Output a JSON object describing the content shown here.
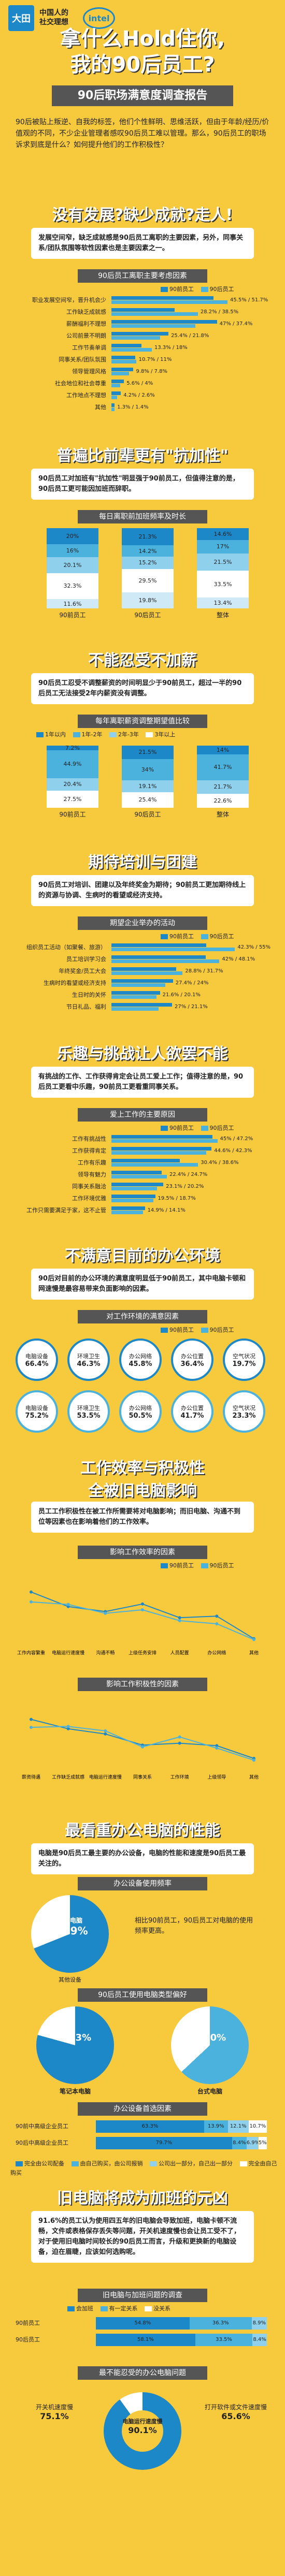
{
  "header": {
    "logo_text": "大田",
    "logo_sub_line1": "中国人的",
    "logo_sub_line2": "社交理想",
    "intel": "intel",
    "title_line1": "拿什么Hold住你,",
    "title_line2": "我的90后员工?",
    "subtitle": "90后职场满意度调查报告"
  },
  "intro": "90后被贴上叛逆、自我的标签，他们个性鲜明、思维活跃，但由于年龄/经历/价值观的不同，不少企业管理者感叹90后员工难以管理。那么，90后员工的职场诉求到底是什么？如何提升他们的工作积极性？",
  "s1": {
    "title": "没有发展?缺少成就?走人!",
    "callout": "发展空间窄，缺乏成就感是90后员工离职的主要因素，另外，同事关系/团队氛围等软性因素也是主要因素之一。",
    "chart_title": "90后员工离职主要考虑因素",
    "legend": [
      "90前员工",
      "90后员工"
    ],
    "rows": [
      {
        "label": "职业发展空间窄，晋升机会少",
        "a": 45.5,
        "b": 51.7
      },
      {
        "label": "工作缺乏成就感",
        "a": 28.2,
        "b": 38.5
      },
      {
        "label": "薪酬福利不理想",
        "a": 47.0,
        "b": 37.4
      },
      {
        "label": "公司前景不明朗",
        "a": 25.4,
        "b": 21.8
      },
      {
        "label": "工作节奏单调",
        "a": 13.3,
        "b": 18.0
      },
      {
        "label": "同事关系/团队氛围",
        "a": 10.7,
        "b": 11.0
      },
      {
        "label": "领导管理风格",
        "a": 9.8,
        "b": 7.8
      },
      {
        "label": "社会地位和社会尊重",
        "a": 5.6,
        "b": 4.0
      },
      {
        "label": "工作地点不理想",
        "a": 4.2,
        "b": 2.6
      },
      {
        "label": "其他",
        "a": 1.3,
        "b": 1.4
      }
    ]
  },
  "s2": {
    "title": "普遍比前辈更有\"抗加性\"",
    "callout": "90后员工对加班有\"抗加性\"明显强于90前员工，但值得注意的是，90后员工更可能因加班而辞职。",
    "chart_title": "每日离职前加班频率及时长",
    "cols": [
      {
        "label": "90前员工",
        "segs": [
          20.0,
          16.0,
          20.1,
          32.3,
          11.6
        ]
      },
      {
        "label": "90后员工",
        "segs": [
          21.3,
          14.2,
          15.2,
          29.5,
          19.8
        ]
      },
      {
        "label": "整体",
        "segs": [
          14.6,
          17.0,
          21.5,
          33.5,
          13.4
        ]
      }
    ]
  },
  "s3": {
    "title": "不能忍受不加薪",
    "callout": "90后员工忍受不调整薪资的时间明显少于90前员工，超过一半的90后员工无法接受2年内薪资没有调整。",
    "chart_title": "每年离职薪资调整期望值比较",
    "legend": [
      "1年以内",
      "1年-2年",
      "2年-3年",
      "3年以上"
    ],
    "cols": [
      {
        "label": "90前员工",
        "segs": [
          7.2,
          44.9,
          20.4,
          27.5
        ]
      },
      {
        "label": "90后员工",
        "segs": [
          21.5,
          34.0,
          19.1,
          25.4
        ]
      },
      {
        "label": "整体",
        "segs": [
          14.0,
          41.7,
          21.7,
          22.6
        ]
      }
    ]
  },
  "s4": {
    "title": "期待培训与团建",
    "callout": "90后员工对培训、团建以及年终奖金为期待；90前员工更加期待线上的资源与协调、生病时的看望或经济支持。",
    "chart_title": "期望企业举办的活动",
    "legend": [
      "90前员工",
      "90后员工"
    ],
    "rows": [
      {
        "label": "组织员工活动（如聚餐、旅游）",
        "a": 42.3,
        "b": 55.0
      },
      {
        "label": "员工培训学习会",
        "a": 42.0,
        "b": 48.1
      },
      {
        "label": "年终奖金/员工大会",
        "a": 28.8,
        "b": 31.7
      },
      {
        "label": "生病时的看望或经济支持",
        "a": 27.4,
        "b": 24.0
      },
      {
        "label": "生日时的关怀",
        "a": 21.6,
        "b": 20.1
      },
      {
        "label": "节日礼品、福利",
        "a": 27.0,
        "b": 21.1
      }
    ]
  },
  "s5": {
    "title": "乐趣与挑战让人欲罢不能",
    "callout": "有挑战的工作、工作获得肯定会让员工爱上工作；值得注意的是，90后员工更看中乐趣，90前员工更看重同事关系。",
    "chart_title": "爱上工作的主要原因",
    "legend": [
      "90前员工",
      "90后员工"
    ],
    "rows": [
      {
        "label": "工作有挑战性",
        "a": 45.0,
        "b": 47.2
      },
      {
        "label": "工作获得肯定",
        "a": 44.6,
        "b": 42.3
      },
      {
        "label": "工作有乐趣",
        "a": 30.4,
        "b": 38.6
      },
      {
        "label": "领导有魅力",
        "a": 22.4,
        "b": 24.7
      },
      {
        "label": "同事关系融洽",
        "a": 23.1,
        "b": 20.2
      },
      {
        "label": "工作环境优雅",
        "a": 19.5,
        "b": 18.7
      },
      {
        "label": "工作只需要满足于家，这不止管",
        "a": 14.9,
        "b": 14.1
      }
    ]
  },
  "s6": {
    "title": "不满意目前的办公环境",
    "callout": "90后对目前的办公环境的满意度明显低于90前员工，其中电脑卡顿和网速慢是最容易带来负面影响的因素。",
    "chart_title": "对工作环境的满意因素",
    "legend": [
      "90前员工",
      "90后员工"
    ],
    "row1": [
      {
        "label": "电脑设备",
        "val": "66.4%"
      },
      {
        "label": "环境卫生",
        "val": "46.3%"
      },
      {
        "label": "办公网络",
        "val": "45.8%"
      },
      {
        "label": "办公位置",
        "val": "36.4%"
      },
      {
        "label": "空气状况",
        "val": "19.7%"
      }
    ],
    "row2": [
      {
        "label": "电脑设备",
        "val": "75.2%"
      },
      {
        "label": "环境卫生",
        "val": "53.5%"
      },
      {
        "label": "办公网络",
        "val": "50.5%"
      },
      {
        "label": "办公位置",
        "val": "41.7%"
      },
      {
        "label": "空气状况",
        "val": "23.3%"
      }
    ]
  },
  "s7": {
    "title_line1": "工作效率与积极性",
    "title_line2": "全被旧电脑影响",
    "callout": "员工工作积极性在被工作所需要将对电脑影响；而旧电脑、沟通不到位等因素也在影响着他们的工作效率。",
    "chart1_title": "影响工作效率的因素",
    "chart1_legend": [
      "90前员工",
      "90后员工"
    ],
    "chart1_cats": [
      "工作内容繁重",
      "电脑运行速度慢",
      "沟通不畅",
      "上级任务安排",
      "人员配置",
      "办公网络",
      "其他"
    ],
    "chart1_a": [
      50.2,
      36.1,
      31.3,
      38.6,
      25.4,
      26.9,
      5.1
    ],
    "chart1_b": [
      40.6,
      38.2,
      29.6,
      33.0,
      22.5,
      19.5,
      4.3
    ],
    "chart2_title": "影响工作积极性的因素",
    "chart2_cats": [
      "薪资待遇",
      "工作缺乏成就感",
      "电脑运行速度慢",
      "同事关系",
      "工作环境",
      "上级领导",
      "其他"
    ],
    "chart2_a": [
      47.2,
      38.1,
      33.1,
      22.4,
      24.2,
      21.8,
      9.5
    ],
    "chart2_b": [
      39.5,
      40.4,
      36.1,
      20.6,
      30.2,
      19.5,
      7.8
    ]
  },
  "s8": {
    "title": "最看重办公电脑的性能",
    "callout": "电脑是90后员工最主要的办公设备，电脑的性能和速度是90后员工最关注的。",
    "chart1_title": "办公设备使用频率",
    "pie1_label": "使用电脑",
    "pie1_val": "68.9%",
    "pie1_sub": "其他设备",
    "pie1_note": "相比90前员工，90后员工对电脑的使用频率更高。",
    "chart2_title": "90后员工使用电脑类型偏好",
    "pie2a_label": "笔记本电脑",
    "pie2a_val": "79.3%",
    "pie2b_label": "台式电脑",
    "pie2b_val": "63.0%",
    "chart3_title": "办公设备首选因素",
    "legend": [
      "完全由公司配备",
      "由自己购买，由公司报销",
      "公司出一部分，自己出一部分",
      "完全由自己购买"
    ],
    "rows": [
      {
        "label": "90前中高级企业员工",
        "segs": [
          63.3,
          13.9,
          12.1,
          10.7
        ]
      },
      {
        "label": "90后中高级企业员工",
        "segs": [
          79.7,
          8.4,
          6.9,
          5.0
        ]
      }
    ]
  },
  "s9": {
    "title": "旧电脑将成为加班的元凶",
    "callout": "91.6%的员工认为使用四五年的旧电脑会导致加班，电脑卡顿不流畅，文件或表格保存丢失等问题，开关机速度慢也会让员工受不了，对于使用旧电脑时间较长的90后员工而言，升级和更换新的电脑设备，迫在眉睫，应该如何选购呢。",
    "chart1_title": "旧电脑与加班问题的调查",
    "legend": [
      "会加班",
      "有一定关系",
      "没关系"
    ],
    "rows": [
      {
        "label": "90前员工",
        "segs": [
          54.8,
          36.3,
          8.9
        ]
      },
      {
        "label": "90后员工",
        "segs": [
          58.1,
          33.5,
          8.4
        ]
      }
    ],
    "chart2_title": "最不能忍受的办公电脑问题",
    "donut_center": "电脑运行速度慢",
    "donut_pct": "90.1%",
    "donut_sub1": "开关机速度慢",
    "donut_sub2": "打开软件或文件速度慢",
    "donut_b1": "75.1%",
    "donut_b2": "65.6%"
  },
  "colors": {
    "bg": "#f7c93d",
    "blue": "#1d88c8",
    "blue2": "#4ab2dd"
  }
}
